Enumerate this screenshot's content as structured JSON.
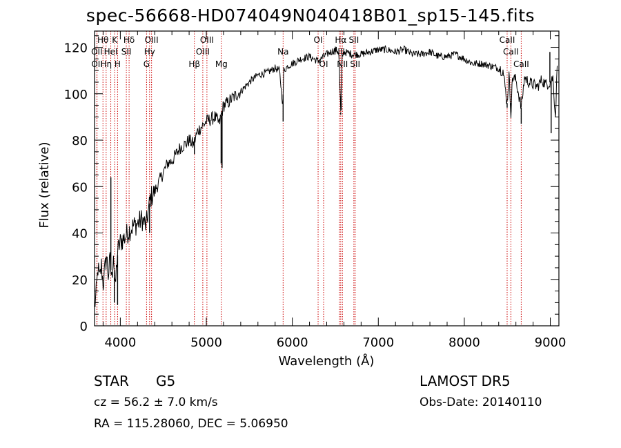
{
  "page": {
    "title": "spec-56668-HD074049N040418B01_sp15-145.fits",
    "object_class": "STAR",
    "subclass": "G5",
    "survey": "LAMOST  DR5",
    "redshift_text": "cz = 56.2 ± 7.0 km/s",
    "obs_date_text": "Obs-Date: 20140110",
    "coords_text": "RA = 115.28060, DEC =   5.06950"
  },
  "chart_data": {
    "type": "line",
    "title": "spec-56668-HD074049N040418B01_sp15-145.fits",
    "xlabel": "Wavelength (Å)",
    "ylabel": "Flux (relative)",
    "xlim": [
      3700,
      9100
    ],
    "ylim": [
      0,
      127
    ],
    "xticks": [
      4000,
      5000,
      6000,
      7000,
      8000,
      9000
    ],
    "yticks": [
      0,
      20,
      40,
      60,
      80,
      100,
      120
    ],
    "grid": false,
    "line_color": "#000000",
    "marker_color": "#cc0000",
    "series": [
      {
        "x": [
          3700,
          3720,
          3740,
          3760,
          3780,
          3800,
          3820,
          3840,
          3860,
          3880,
          3900,
          3920,
          3940,
          3960,
          3980,
          4000,
          4050,
          4100,
          4150,
          4200,
          4250,
          4300,
          4350,
          4400,
          4450,
          4500,
          4550,
          4600,
          4650,
          4700,
          4750,
          4800,
          4850,
          4900,
          4950,
          5000,
          5050,
          5100,
          5150,
          5200,
          5250,
          5300,
          5400,
          5500,
          5600,
          5700,
          5800,
          5850,
          5890,
          5900,
          5950,
          6000,
          6100,
          6200,
          6300,
          6400,
          6500,
          6540,
          6563,
          6580,
          6600,
          6700,
          6800,
          6900,
          7000,
          7100,
          7200,
          7300,
          7400,
          7500,
          7600,
          7700,
          7800,
          7900,
          8000,
          8100,
          8200,
          8300,
          8400,
          8450,
          8498,
          8520,
          8542,
          8560,
          8600,
          8662,
          8700,
          8750,
          8800,
          8850,
          8900,
          8950,
          9000,
          9030,
          9060,
          9080
        ],
        "values": [
          8,
          14,
          25,
          20,
          26,
          18,
          24,
          30,
          22,
          28,
          20,
          32,
          15,
          28,
          34,
          36,
          38,
          41,
          43,
          44,
          46,
          43,
          55,
          58,
          62,
          66,
          70,
          71,
          74,
          77,
          78,
          80,
          78,
          84,
          86,
          88,
          89,
          90,
          87,
          95,
          96,
          98,
          101,
          105,
          108,
          109,
          111,
          110,
          95,
          110,
          112,
          113,
          115,
          116,
          114,
          117,
          119,
          118,
          92,
          116,
          118,
          117,
          117,
          118,
          119,
          119,
          118,
          119,
          117,
          117,
          118,
          116,
          116,
          117,
          115,
          113,
          113,
          112,
          111,
          110,
          96,
          108,
          92,
          107,
          106,
          94,
          107,
          105,
          104,
          103,
          106,
          104,
          105,
          107,
          90,
          112
        ],
        "dips": [
          {
            "x": 3930,
            "y": 10
          },
          {
            "x": 3968,
            "y": 9
          },
          {
            "x": 3890,
            "y": 64
          },
          {
            "x": 4340,
            "y": 40
          },
          {
            "x": 4861,
            "y": 74
          },
          {
            "x": 5172,
            "y": 70
          },
          {
            "x": 5183,
            "y": 68
          },
          {
            "x": 5893,
            "y": 88
          },
          {
            "x": 6563,
            "y": 91
          },
          {
            "x": 6568,
            "y": 93
          },
          {
            "x": 8498,
            "y": 94
          },
          {
            "x": 8542,
            "y": 96
          },
          {
            "x": 8662,
            "y": 87
          },
          {
            "x": 9010,
            "y": 83
          },
          {
            "x": 8995,
            "y": 118
          }
        ]
      }
    ],
    "lines": [
      {
        "label": "Hθ",
        "wave": 3798,
        "row": 0
      },
      {
        "label": "OII",
        "wave": 3727,
        "row": 1
      },
      {
        "label": "OII",
        "wave": 3729,
        "row": 2
      },
      {
        "label": "Hη",
        "wave": 3835,
        "row": 2
      },
      {
        "label": "K",
        "wave": 3934,
        "row": 0
      },
      {
        "label": "HeI",
        "wave": 3889,
        "row": 1
      },
      {
        "label": "H",
        "wave": 3968,
        "row": 2
      },
      {
        "label": "Hδ",
        "wave": 4102,
        "row": 0
      },
      {
        "label": "SII",
        "wave": 4070,
        "row": 1
      },
      {
        "label": "OIII",
        "wave": 4363,
        "row": 0
      },
      {
        "label": "Hγ",
        "wave": 4340,
        "row": 1
      },
      {
        "label": "G",
        "wave": 4305,
        "row": 2
      },
      {
        "label": "Hβ",
        "wave": 4861,
        "row": 2
      },
      {
        "label": "OIII",
        "wave": 5007,
        "row": 0
      },
      {
        "label": "OIII",
        "wave": 4959,
        "row": 1
      },
      {
        "label": "Mg",
        "wave": 5175,
        "row": 2
      },
      {
        "label": "Na",
        "wave": 5893,
        "row": 1
      },
      {
        "label": "OI",
        "wave": 6300,
        "row": 0
      },
      {
        "label": "OI",
        "wave": 6364,
        "row": 2
      },
      {
        "label": "Hα",
        "wave": 6563,
        "row": 0
      },
      {
        "label": "NII",
        "wave": 6548,
        "row": 1
      },
      {
        "label": "NII",
        "wave": 6583,
        "row": 2
      },
      {
        "label": "SII",
        "wave": 6716,
        "row": 0
      },
      {
        "label": "SII",
        "wave": 6731,
        "row": 2
      },
      {
        "label": "CaII",
        "wave": 8498,
        "row": 0
      },
      {
        "label": "CaII",
        "wave": 8542,
        "row": 1
      },
      {
        "label": "CaII",
        "wave": 8662,
        "row": 2
      }
    ]
  }
}
